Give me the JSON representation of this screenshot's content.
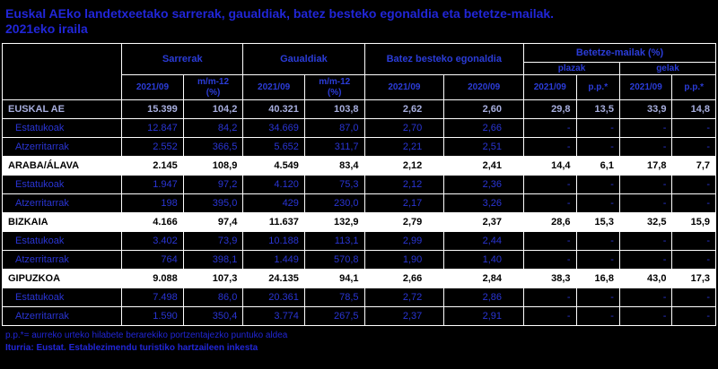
{
  "title": {
    "line1": "Euskal AEko landetxeetako sarrerak, gaualdiak, batez besteko egonaldia eta betetze-mailak.",
    "line2": "2021eko iraila"
  },
  "colors": {
    "background": "#000000",
    "accent_blue": "#2126d8",
    "data_blue": "#2a35d4",
    "total_row_text": "#a7aede",
    "province_row_bg": "#ffffff",
    "grid": "#ffffff"
  },
  "table": {
    "header": {
      "groups": [
        "Sarrerak",
        "Gaualdiak",
        "Batez besteko egonaldia",
        "Betetze-mailak (%)"
      ],
      "subgroups": [
        "plazak",
        "gelak"
      ],
      "columns": [
        "2021/09",
        "m/m-12\n(%)",
        "2021/09",
        "m/m-12\n(%)",
        "2021/09",
        "2020/09",
        "2021/09",
        "p.p.*",
        "2021/09",
        "p.p.*"
      ]
    },
    "rows": [
      {
        "label": "EUSKAL AE",
        "type": "total",
        "values": [
          "15.399",
          "104,2",
          "40.321",
          "103,8",
          "2,62",
          "2,60",
          "29,8",
          "13,5",
          "33,9",
          "14,8"
        ]
      },
      {
        "label": "Estatukoak",
        "type": "sub",
        "values": [
          "12.847",
          "84,2",
          "34.669",
          "87,0",
          "2,70",
          "2,66",
          "-",
          "-",
          "-",
          "-"
        ]
      },
      {
        "label": "Atzerritarrak",
        "type": "sub",
        "values": [
          "2.552",
          "366,5",
          "5.652",
          "311,7",
          "2,21",
          "2,51",
          "-",
          "-",
          "-",
          "-"
        ]
      },
      {
        "label": "ARABA/ÁLAVA",
        "type": "province",
        "values": [
          "2.145",
          "108,9",
          "4.549",
          "83,4",
          "2,12",
          "2,41",
          "14,4",
          "6,1",
          "17,8",
          "7,7"
        ]
      },
      {
        "label": "Estatukoak",
        "type": "sub",
        "values": [
          "1.947",
          "97,2",
          "4.120",
          "75,3",
          "2,12",
          "2,36",
          "-",
          "-",
          "-",
          "-"
        ]
      },
      {
        "label": "Atzerritarrak",
        "type": "sub",
        "values": [
          "198",
          "395,0",
          "429",
          "230,0",
          "2,17",
          "3,26",
          "-",
          "-",
          "-",
          "-"
        ]
      },
      {
        "label": "BIZKAIA",
        "type": "province",
        "values": [
          "4.166",
          "97,4",
          "11.637",
          "132,9",
          "2,79",
          "2,37",
          "28,6",
          "15,3",
          "32,5",
          "15,9"
        ]
      },
      {
        "label": "Estatukoak",
        "type": "sub",
        "values": [
          "3.402",
          "73,9",
          "10.188",
          "113,1",
          "2,99",
          "2,44",
          "-",
          "-",
          "-",
          "-"
        ]
      },
      {
        "label": "Atzerritarrak",
        "type": "sub",
        "values": [
          "764",
          "398,1",
          "1.449",
          "570,8",
          "1,90",
          "1,40",
          "-",
          "-",
          "-",
          "-"
        ]
      },
      {
        "label": "GIPUZKOA",
        "type": "province",
        "values": [
          "9.088",
          "107,3",
          "24.135",
          "94,1",
          "2,66",
          "2,84",
          "38,3",
          "16,8",
          "43,0",
          "17,3"
        ]
      },
      {
        "label": "Estatukoak",
        "type": "sub",
        "values": [
          "7.498",
          "86,0",
          "20.361",
          "78,5",
          "2,72",
          "2,86",
          "-",
          "-",
          "-",
          "-"
        ]
      },
      {
        "label": "Atzerritarrak",
        "type": "sub",
        "values": [
          "1.590",
          "350,4",
          "3.774",
          "267,5",
          "2,37",
          "2,91",
          "-",
          "-",
          "-",
          "-"
        ]
      }
    ],
    "footnotes": [
      "p.p.*= aurreko urteko hilabete berarekiko portzentajezko puntuko aldea",
      "Iturria: Eustat. Establezimendu turistiko hartzaileen inkesta"
    ]
  }
}
